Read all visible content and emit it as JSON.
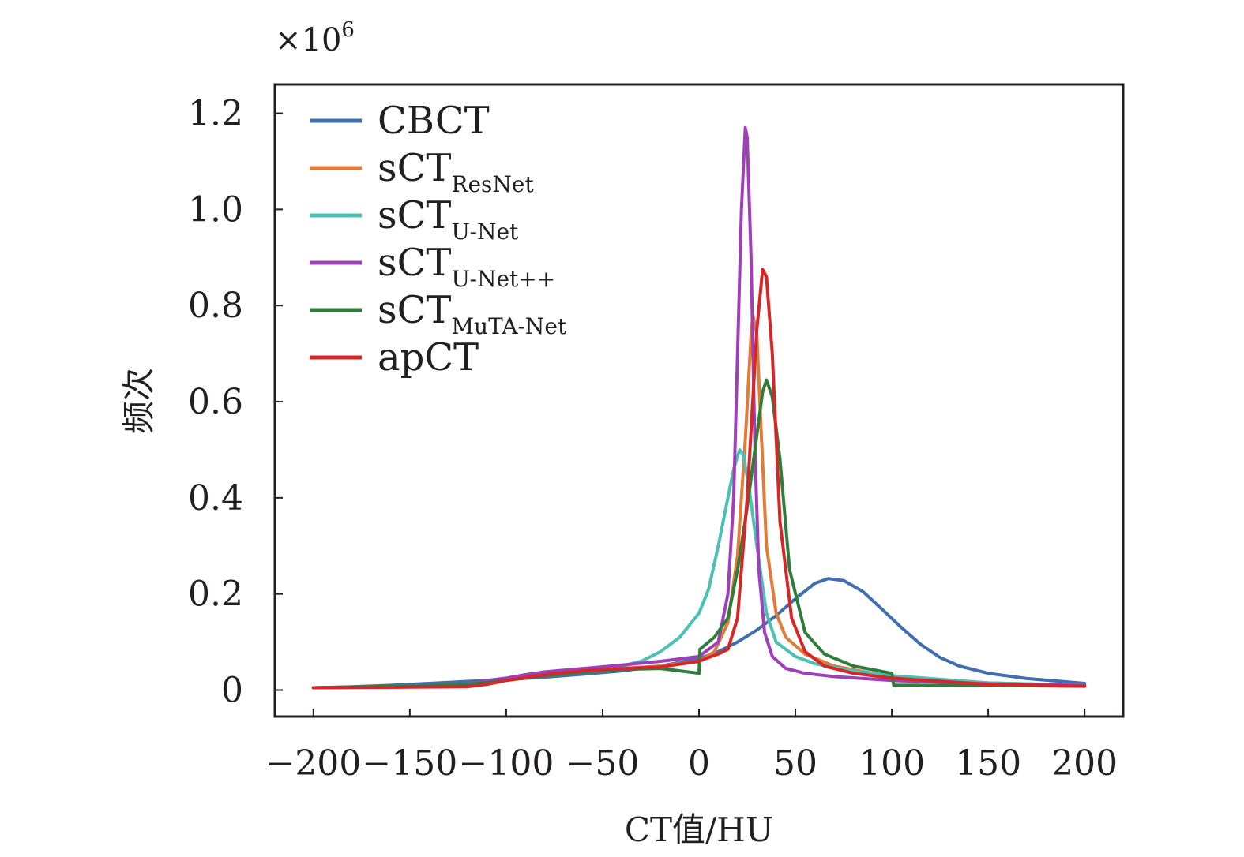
{
  "chart_data": {
    "type": "line",
    "title": "",
    "xlabel": "CT值/HU",
    "ylabel": "频次",
    "y_multiplier": {
      "base": "×10",
      "exponent": "6"
    },
    "xlim": [
      -220,
      220
    ],
    "ylim": [
      -0.055,
      1.26
    ],
    "xticks": [
      -200,
      -150,
      -100,
      -50,
      0,
      50,
      100,
      150,
      200
    ],
    "xtick_labels": [
      "−200",
      "−150",
      "−100",
      "−50",
      "0",
      "50",
      "100",
      "150",
      "200"
    ],
    "yticks": [
      0,
      0.2,
      0.4,
      0.6,
      0.8,
      1.0,
      1.2
    ],
    "ytick_labels": [
      "0",
      "0.2",
      "0.4",
      "0.6",
      "0.8",
      "1.0",
      "1.2"
    ],
    "grid": false,
    "legend_position": "top-left",
    "series": [
      {
        "name": "CBCT",
        "name_base": "CBCT",
        "name_sub": "",
        "color": "#3f6fae",
        "points": [
          [
            -200,
            0.005
          ],
          [
            -180,
            0.007
          ],
          [
            -160,
            0.01
          ],
          [
            -140,
            0.014
          ],
          [
            -120,
            0.018
          ],
          [
            -100,
            0.022
          ],
          [
            -80,
            0.027
          ],
          [
            -60,
            0.033
          ],
          [
            -40,
            0.04
          ],
          [
            -20,
            0.05
          ],
          [
            0,
            0.065
          ],
          [
            10,
            0.08
          ],
          [
            20,
            0.1
          ],
          [
            30,
            0.125
          ],
          [
            40,
            0.155
          ],
          [
            50,
            0.19
          ],
          [
            60,
            0.222
          ],
          [
            67,
            0.232
          ],
          [
            75,
            0.228
          ],
          [
            85,
            0.205
          ],
          [
            95,
            0.168
          ],
          [
            105,
            0.13
          ],
          [
            115,
            0.095
          ],
          [
            125,
            0.068
          ],
          [
            135,
            0.05
          ],
          [
            150,
            0.035
          ],
          [
            170,
            0.024
          ],
          [
            185,
            0.019
          ],
          [
            200,
            0.014
          ]
        ]
      },
      {
        "name": "sCTResNet",
        "name_base": "sCT",
        "name_sub": "ResNet",
        "color": "#e07b39",
        "points": [
          [
            -200,
            0.005
          ],
          [
            -150,
            0.008
          ],
          [
            -120,
            0.012
          ],
          [
            -110,
            0.018
          ],
          [
            -100,
            0.022
          ],
          [
            -80,
            0.032
          ],
          [
            -60,
            0.04
          ],
          [
            -40,
            0.045
          ],
          [
            -20,
            0.05
          ],
          [
            0,
            0.06
          ],
          [
            8,
            0.08
          ],
          [
            15,
            0.14
          ],
          [
            20,
            0.28
          ],
          [
            24,
            0.52
          ],
          [
            27,
            0.74
          ],
          [
            28,
            0.78
          ],
          [
            30,
            0.74
          ],
          [
            32,
            0.56
          ],
          [
            35,
            0.3
          ],
          [
            40,
            0.16
          ],
          [
            45,
            0.11
          ],
          [
            55,
            0.075
          ],
          [
            70,
            0.05
          ],
          [
            90,
            0.035
          ],
          [
            110,
            0.025
          ],
          [
            150,
            0.015
          ],
          [
            200,
            0.01
          ]
        ]
      },
      {
        "name": "sCTU-Net",
        "name_base": "sCT",
        "name_sub": "U-Net",
        "color": "#4dc0b5",
        "points": [
          [
            -200,
            0.005
          ],
          [
            -150,
            0.007
          ],
          [
            -120,
            0.012
          ],
          [
            -110,
            0.018
          ],
          [
            -100,
            0.022
          ],
          [
            -80,
            0.03
          ],
          [
            -60,
            0.038
          ],
          [
            -40,
            0.05
          ],
          [
            -30,
            0.06
          ],
          [
            -20,
            0.08
          ],
          [
            -10,
            0.11
          ],
          [
            0,
            0.16
          ],
          [
            5,
            0.21
          ],
          [
            10,
            0.3
          ],
          [
            15,
            0.4
          ],
          [
            18,
            0.46
          ],
          [
            21,
            0.5
          ],
          [
            23,
            0.49
          ],
          [
            26,
            0.42
          ],
          [
            30,
            0.3
          ],
          [
            35,
            0.16
          ],
          [
            40,
            0.1
          ],
          [
            50,
            0.07
          ],
          [
            60,
            0.055
          ],
          [
            80,
            0.04
          ],
          [
            100,
            0.03
          ],
          [
            150,
            0.015
          ],
          [
            200,
            0.01
          ]
        ]
      },
      {
        "name": "sCTU-Net++",
        "name_base": "sCT",
        "name_sub": "U-Net++",
        "color": "#a040b8",
        "points": [
          [
            -200,
            0.005
          ],
          [
            -150,
            0.007
          ],
          [
            -120,
            0.012
          ],
          [
            -110,
            0.02
          ],
          [
            -100,
            0.025
          ],
          [
            -90,
            0.032
          ],
          [
            -80,
            0.038
          ],
          [
            -60,
            0.045
          ],
          [
            -40,
            0.052
          ],
          [
            -20,
            0.06
          ],
          [
            0,
            0.07
          ],
          [
            10,
            0.1
          ],
          [
            15,
            0.2
          ],
          [
            18,
            0.4
          ],
          [
            20,
            0.7
          ],
          [
            22,
            1.0
          ],
          [
            24,
            1.17
          ],
          [
            25,
            1.15
          ],
          [
            27,
            0.9
          ],
          [
            29,
            0.5
          ],
          [
            31,
            0.25
          ],
          [
            34,
            0.12
          ],
          [
            38,
            0.07
          ],
          [
            45,
            0.045
          ],
          [
            55,
            0.035
          ],
          [
            70,
            0.028
          ],
          [
            100,
            0.02
          ],
          [
            150,
            0.013
          ],
          [
            200,
            0.01
          ]
        ]
      },
      {
        "name": "sCTMuTA-Net",
        "name_base": "sCT",
        "name_sub": "MuTA-Net",
        "color": "#2e7d3a",
        "points": [
          [
            -200,
            0.005
          ],
          [
            -150,
            0.008
          ],
          [
            -120,
            0.012
          ],
          [
            -100,
            0.02
          ],
          [
            -80,
            0.03
          ],
          [
            -60,
            0.038
          ],
          [
            -40,
            0.043
          ],
          [
            -20,
            0.045
          ],
          [
            -10,
            0.04
          ],
          [
            0,
            0.035
          ],
          [
            0.5,
            0.085
          ],
          [
            8,
            0.11
          ],
          [
            15,
            0.15
          ],
          [
            20,
            0.25
          ],
          [
            25,
            0.38
          ],
          [
            30,
            0.53
          ],
          [
            33,
            0.62
          ],
          [
            35,
            0.645
          ],
          [
            38,
            0.61
          ],
          [
            42,
            0.48
          ],
          [
            47,
            0.25
          ],
          [
            55,
            0.12
          ],
          [
            65,
            0.075
          ],
          [
            80,
            0.05
          ],
          [
            100,
            0.035
          ],
          [
            101,
            0.01
          ],
          [
            150,
            0.01
          ],
          [
            200,
            0.008
          ]
        ]
      },
      {
        "name": "apCT",
        "name_base": "apCT",
        "name_sub": "",
        "color": "#d62728",
        "points": [
          [
            -200,
            0.005
          ],
          [
            -150,
            0.006
          ],
          [
            -120,
            0.007
          ],
          [
            -110,
            0.012
          ],
          [
            -100,
            0.02
          ],
          [
            -80,
            0.032
          ],
          [
            -60,
            0.04
          ],
          [
            -40,
            0.045
          ],
          [
            -20,
            0.048
          ],
          [
            0,
            0.06
          ],
          [
            5,
            0.068
          ],
          [
            10,
            0.075
          ],
          [
            15,
            0.085
          ],
          [
            20,
            0.15
          ],
          [
            25,
            0.4
          ],
          [
            30,
            0.75
          ],
          [
            33,
            0.875
          ],
          [
            35,
            0.86
          ],
          [
            38,
            0.7
          ],
          [
            42,
            0.35
          ],
          [
            48,
            0.15
          ],
          [
            55,
            0.08
          ],
          [
            65,
            0.05
          ],
          [
            80,
            0.035
          ],
          [
            100,
            0.025
          ],
          [
            150,
            0.012
          ],
          [
            200,
            0.008
          ]
        ]
      }
    ]
  }
}
